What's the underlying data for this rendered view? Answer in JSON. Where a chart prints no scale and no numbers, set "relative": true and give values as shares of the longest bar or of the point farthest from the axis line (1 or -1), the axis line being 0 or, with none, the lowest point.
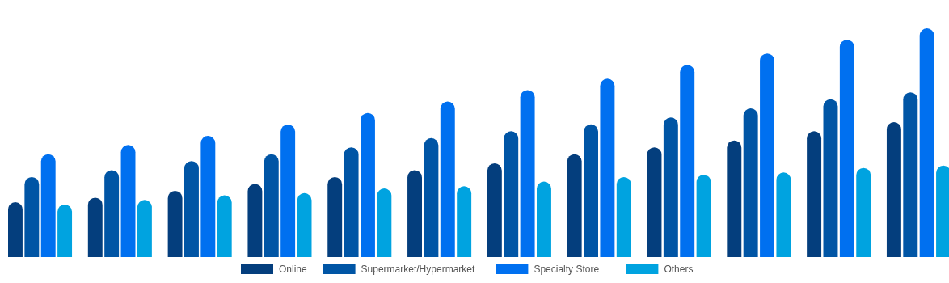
{
  "chart_data": {
    "type": "bar",
    "relative": true,
    "legend": "bottom",
    "categories": [
      null,
      null,
      null,
      null,
      null,
      null,
      null,
      null,
      null,
      null,
      null,
      null
    ],
    "series": [
      {
        "name": "Online",
        "color": "#043e7d",
        "values": [
          0.24,
          0.26,
          0.29,
          0.32,
          0.35,
          0.38,
          0.41,
          0.45,
          0.48,
          0.51,
          0.55,
          0.59
        ]
      },
      {
        "name": "Supermarket/Hypermarket",
        "color": "#0055a5",
        "values": [
          0.35,
          0.38,
          0.42,
          0.45,
          0.48,
          0.52,
          0.55,
          0.58,
          0.61,
          0.65,
          0.69,
          0.72
        ]
      },
      {
        "name": "Specialty Store",
        "color": "#0070f0",
        "values": [
          0.45,
          0.49,
          0.53,
          0.58,
          0.63,
          0.68,
          0.73,
          0.78,
          0.84,
          0.89,
          0.95,
          1
        ]
      },
      {
        "name": "Others",
        "color": "#00a3e0",
        "values": [
          0.23,
          0.25,
          0.27,
          0.28,
          0.3,
          0.31,
          0.33,
          0.35,
          0.36,
          0.37,
          0.39,
          0.4
        ]
      }
    ]
  }
}
